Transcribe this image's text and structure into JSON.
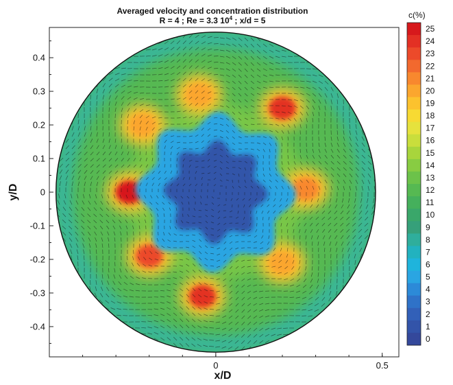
{
  "chart_data": {
    "type": "heatmap",
    "title": "Averaged velocity and concentration distribution",
    "subtitle_parts": {
      "pre": "R = 4 ; Re = 3.3 10",
      "sup": "4",
      "post": " ; x/d = 5"
    },
    "xlabel": "x/D",
    "ylabel": "y/D",
    "xlim": [
      -0.5,
      0.55
    ],
    "ylim": [
      -0.49,
      0.49
    ],
    "x_ticks": [
      {
        "value": 0,
        "label": "0"
      },
      {
        "value": 0.5,
        "label": "0.5"
      }
    ],
    "y_ticks": [
      {
        "value": 0.4,
        "label": "0.4"
      },
      {
        "value": 0.3,
        "label": "0.3"
      },
      {
        "value": 0.2,
        "label": "0.2"
      },
      {
        "value": 0.1,
        "label": "0.1"
      },
      {
        "value": 0,
        "label": "0"
      },
      {
        "value": -0.1,
        "label": "-0.1"
      },
      {
        "value": -0.2,
        "label": "-0.2"
      },
      {
        "value": -0.3,
        "label": "-0.3"
      },
      {
        "value": -0.4,
        "label": "-0.4"
      }
    ],
    "colorbar": {
      "title": "c(%)",
      "levels": [
        25,
        24,
        23,
        22,
        21,
        20,
        19,
        18,
        17,
        16,
        15,
        14,
        13,
        12,
        11,
        10,
        9,
        8,
        7,
        6,
        5,
        4,
        3,
        2,
        1,
        0
      ],
      "colors": [
        "#d7191c",
        "#e33024",
        "#ec4a2a",
        "#f2692e",
        "#f8882e",
        "#fba62e",
        "#fcc22e",
        "#f7da33",
        "#e6e23d",
        "#c9de3c",
        "#a8d53c",
        "#88cc42",
        "#6cc24a",
        "#56b952",
        "#45b05c",
        "#3aa76a",
        "#36a07a",
        "#2fae9c",
        "#22b2bf",
        "#1fb4dc",
        "#2aa5e2",
        "#2c8ad8",
        "#2f72c8",
        "#3260b8",
        "#3354a9",
        "#34489b"
      ]
    },
    "description_regions": {
      "core_region": {
        "x": 0,
        "y": 0,
        "radius": 0.14,
        "level": 1
      },
      "ring_region": {
        "x": 0,
        "y": 0,
        "radius": 0.22,
        "level": 5
      },
      "hot_spots": [
        {
          "x": -0.05,
          "y": 0.29,
          "level": 20
        },
        {
          "x": 0.2,
          "y": 0.25,
          "level": 24
        },
        {
          "x": 0.27,
          "y": 0.01,
          "level": 21
        },
        {
          "x": 0.2,
          "y": -0.21,
          "level": 20
        },
        {
          "x": -0.04,
          "y": -0.31,
          "level": 24
        },
        {
          "x": -0.2,
          "y": -0.19,
          "level": 23
        },
        {
          "x": -0.26,
          "y": 0.0,
          "level": 25
        },
        {
          "x": -0.22,
          "y": 0.2,
          "level": 20
        }
      ],
      "boundary_radius": 0.48
    }
  }
}
